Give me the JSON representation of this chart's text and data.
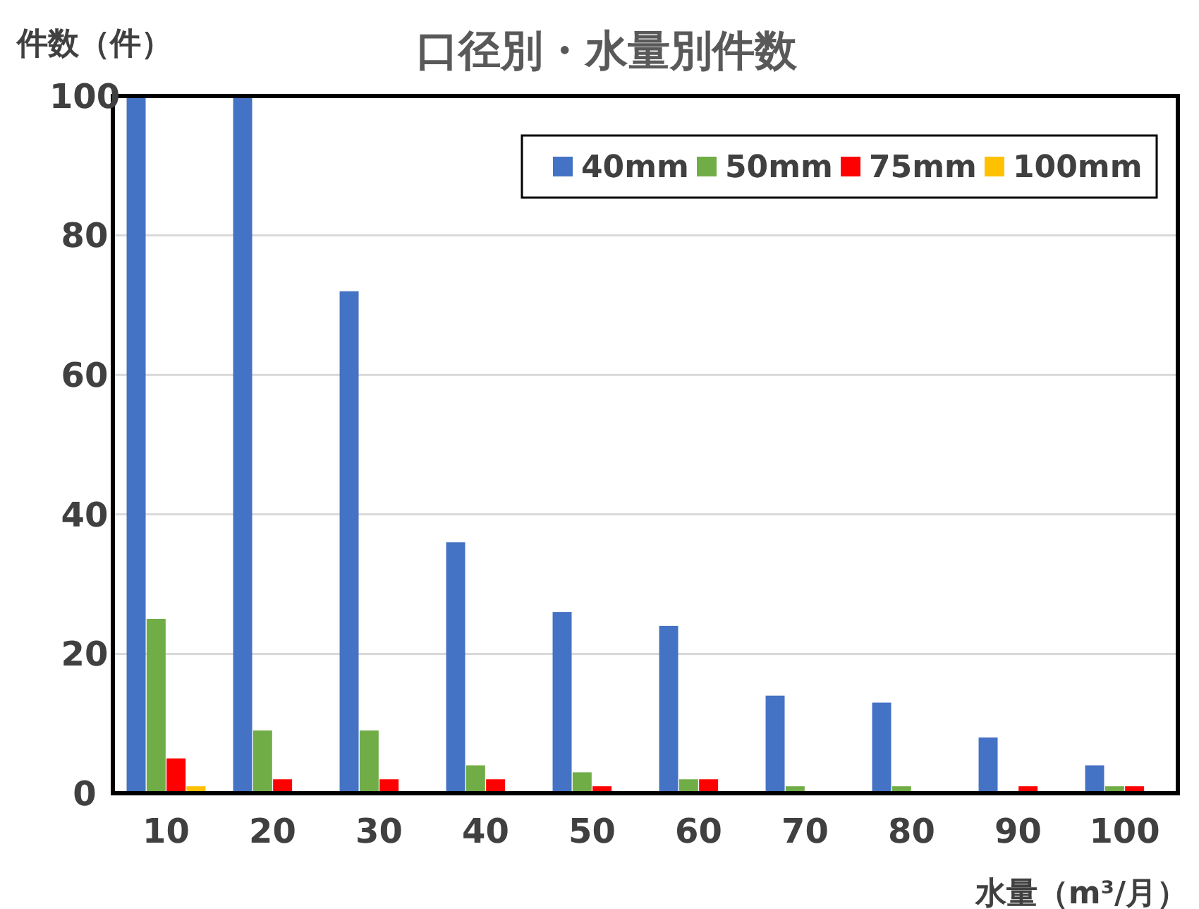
{
  "chart_data": {
    "type": "bar",
    "title": "口径別・水量別件数",
    "xlabel": "水量（m³/月）",
    "ylabel": "件数（件）",
    "categories": [
      "10",
      "20",
      "30",
      "40",
      "50",
      "60",
      "70",
      "80",
      "90",
      "100"
    ],
    "series": [
      {
        "name": "40mm",
        "color": "#4472c4",
        "values": [
          100,
          100,
          72,
          36,
          26,
          24,
          14,
          13,
          8,
          4
        ]
      },
      {
        "name": "50mm",
        "color": "#70ad47",
        "values": [
          25,
          9,
          9,
          4,
          3,
          2,
          1,
          1,
          0,
          1
        ]
      },
      {
        "name": "75mm",
        "color": "#ff0000",
        "values": [
          5,
          2,
          2,
          2,
          1,
          2,
          0,
          0,
          1,
          1
        ]
      },
      {
        "name": "100mm",
        "color": "#ffc000",
        "values": [
          1,
          0,
          0,
          0,
          0,
          0,
          0,
          0,
          0,
          0
        ]
      }
    ],
    "ylim": [
      0,
      100
    ],
    "yticks": [
      0,
      20,
      40,
      60,
      80,
      100
    ],
    "grid": "y",
    "legend": "top right"
  }
}
